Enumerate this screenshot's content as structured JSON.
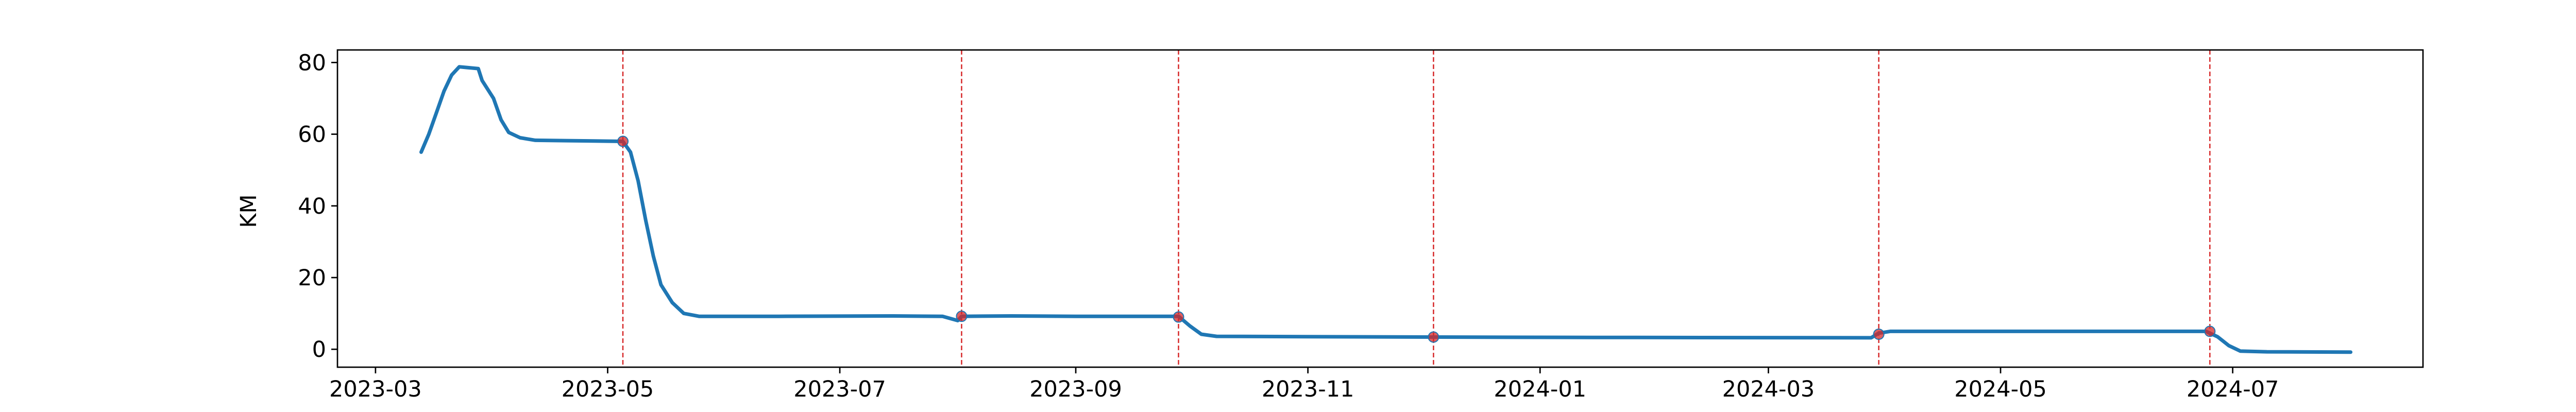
{
  "chart_data": {
    "type": "line",
    "title": "",
    "xlabel": "",
    "ylabel": "KM",
    "x_axis": "date",
    "xlim": [
      "2023-02-19",
      "2024-08-20"
    ],
    "ylim": [
      -5,
      83.5
    ],
    "grid": false,
    "legend": "none",
    "x_ticks": [
      "2023-03",
      "2023-05",
      "2023-07",
      "2023-09",
      "2023-11",
      "2024-01",
      "2024-03",
      "2024-05",
      "2024-07"
    ],
    "y_ticks": [
      0,
      20,
      40,
      60,
      80
    ],
    "series": [
      {
        "color": "#1f77b4",
        "points": [
          [
            "2023-03-13",
            55
          ],
          [
            "2023-03-15",
            60
          ],
          [
            "2023-03-17",
            66
          ],
          [
            "2023-03-19",
            72
          ],
          [
            "2023-03-21",
            76.5
          ],
          [
            "2023-03-23",
            78.8
          ],
          [
            "2023-03-25",
            78.6
          ],
          [
            "2023-03-28",
            78.3
          ],
          [
            "2023-03-29",
            75
          ],
          [
            "2023-04-01",
            70
          ],
          [
            "2023-04-03",
            64
          ],
          [
            "2023-04-05",
            60.5
          ],
          [
            "2023-04-08",
            59
          ],
          [
            "2023-04-12",
            58.3
          ],
          [
            "2023-04-20",
            58.2
          ],
          [
            "2023-05-05",
            58
          ],
          [
            "2023-05-07",
            55
          ],
          [
            "2023-05-09",
            47
          ],
          [
            "2023-05-11",
            36
          ],
          [
            "2023-05-13",
            26
          ],
          [
            "2023-05-15",
            18
          ],
          [
            "2023-05-18",
            13
          ],
          [
            "2023-05-21",
            10
          ],
          [
            "2023-05-25",
            9.2
          ],
          [
            "2023-06-15",
            9.2
          ],
          [
            "2023-07-15",
            9.3
          ],
          [
            "2023-07-28",
            9.2
          ],
          [
            "2023-08-01",
            8
          ],
          [
            "2023-08-02",
            9.2
          ],
          [
            "2023-08-15",
            9.3
          ],
          [
            "2023-09-01",
            9.2
          ],
          [
            "2023-09-28",
            9.2
          ],
          [
            "2023-10-01",
            6.5
          ],
          [
            "2023-10-04",
            4.2
          ],
          [
            "2023-10-08",
            3.6
          ],
          [
            "2023-11-01",
            3.5
          ],
          [
            "2023-12-04",
            3.4
          ],
          [
            "2024-01-15",
            3.3
          ],
          [
            "2024-03-28",
            3.2
          ],
          [
            "2024-03-30",
            4.5
          ],
          [
            "2024-04-02",
            5
          ],
          [
            "2024-05-15",
            5
          ],
          [
            "2024-06-24",
            5
          ],
          [
            "2024-06-27",
            3.5
          ],
          [
            "2024-06-30",
            1
          ],
          [
            "2024-07-03",
            -0.5
          ],
          [
            "2024-07-10",
            -0.7
          ],
          [
            "2024-08-01",
            -0.8
          ]
        ]
      }
    ],
    "change_points": {
      "line_color": "#d62728",
      "line_style": "dashed",
      "marker_color": "#d62728",
      "points": [
        [
          "2023-05-05",
          58
        ],
        [
          "2023-08-02",
          9.2
        ],
        [
          "2023-09-28",
          9
        ],
        [
          "2023-12-04",
          3.4
        ],
        [
          "2024-03-30",
          4.2
        ],
        [
          "2024-06-25",
          5
        ]
      ]
    }
  }
}
